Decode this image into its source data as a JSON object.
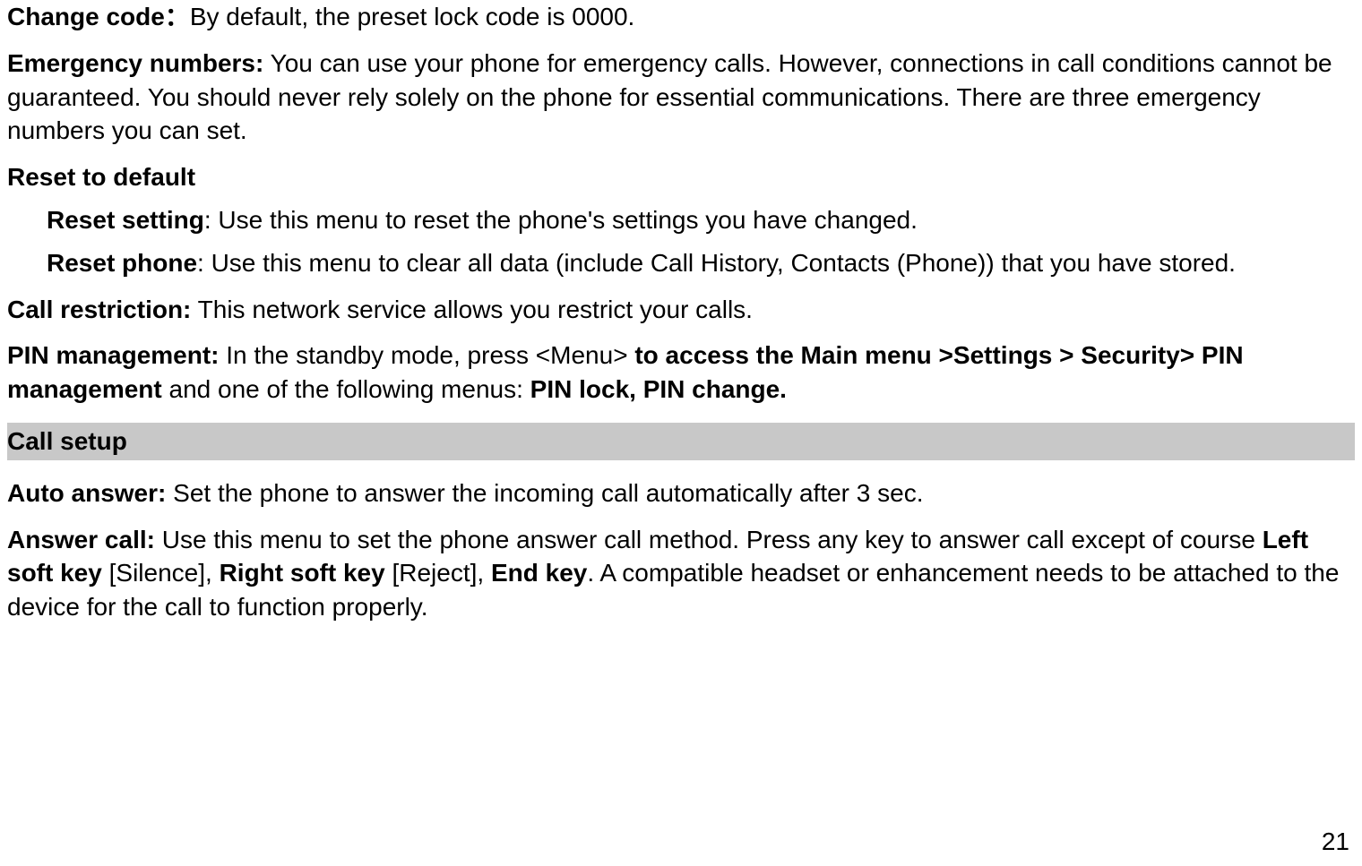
{
  "p1": {
    "bold": "Change code：",
    "text": "By default, the preset lock code is 0000."
  },
  "p2": {
    "bold": "Emergency numbers:",
    "text": " You can use your phone for emergency calls. However, connections in call conditions cannot be guaranteed. You should never rely solely on the phone for essential communications. There are three emergency numbers you can set."
  },
  "p3": {
    "bold": "Reset to default"
  },
  "p4": {
    "bold": "Reset setting",
    "text": ": Use this menu to reset the phone's settings you have changed."
  },
  "p5": {
    "bold": "Reset phone",
    "text": ": Use this menu to clear all data (include Call History, Contacts (Phone)) that you have stored."
  },
  "p6": {
    "bold": "Call restriction:",
    "text": " This network service allows you restrict your calls."
  },
  "p7": {
    "bold1": "PIN management:",
    "text1": " In the standby mode, press <Menu> ",
    "bold2": "to access the Main menu >Settings > Security> PIN management",
    "text2": " and one of the following menus: ",
    "bold3": "PIN lock, PIN change."
  },
  "section": {
    "title": "Call setup"
  },
  "p8": {
    "bold": "Auto answer:",
    "text": " Set the phone to answer the incoming call automatically after 3 sec."
  },
  "p9": {
    "bold1": "Answer call:",
    "text1": " Use this menu to set the phone answer call method. Press any key to answer call except of course ",
    "bold2": "Left soft key",
    "text2": " [Silence], ",
    "bold3": "Right soft key",
    "text3": " [Reject], ",
    "bold4": "End key",
    "text4": ". A compatible headset or enhancement needs to be attached to the device for the call to function properly."
  },
  "page_number": "21"
}
